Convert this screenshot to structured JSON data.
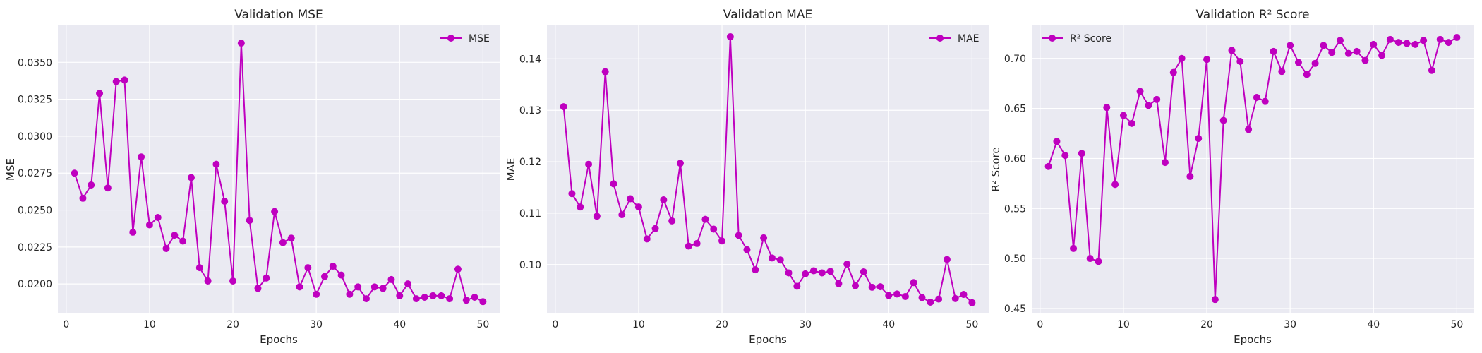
{
  "colors": {
    "line": "#bf00bf",
    "plot_background": "#eaeaf2",
    "grid": "#ffffff"
  },
  "chart_data": [
    {
      "type": "line",
      "title": "Validation MSE",
      "xlabel": "Epochs",
      "ylabel": "MSE",
      "legend": "top-right",
      "grid": true,
      "xlim": [
        -1,
        52
      ],
      "ylim": [
        0.018,
        0.0375
      ],
      "xticks": [
        0,
        10,
        20,
        30,
        40,
        50
      ],
      "yticks": [
        0.02,
        0.0225,
        0.025,
        0.0275,
        0.03,
        0.0325,
        0.035
      ],
      "ytick_labels": [
        "0.0200",
        "0.0225",
        "0.0250",
        "0.0275",
        "0.0300",
        "0.0325",
        "0.0350"
      ],
      "series": [
        {
          "name": "MSE",
          "x": [
            1,
            2,
            3,
            4,
            5,
            6,
            7,
            8,
            9,
            10,
            11,
            12,
            13,
            14,
            15,
            16,
            17,
            18,
            19,
            20,
            21,
            22,
            23,
            24,
            25,
            26,
            27,
            28,
            29,
            30,
            31,
            32,
            33,
            34,
            35,
            36,
            37,
            38,
            39,
            40,
            41,
            42,
            43,
            44,
            45,
            46,
            47,
            48,
            49,
            50
          ],
          "values": [
            0.0275,
            0.0258,
            0.0267,
            0.0329,
            0.0265,
            0.0337,
            0.0338,
            0.0235,
            0.0286,
            0.024,
            0.0245,
            0.0224,
            0.0233,
            0.0229,
            0.0272,
            0.0211,
            0.0202,
            0.0281,
            0.0256,
            0.0202,
            0.0363,
            0.0243,
            0.0197,
            0.0204,
            0.0249,
            0.0228,
            0.0231,
            0.0198,
            0.0211,
            0.0193,
            0.0205,
            0.0212,
            0.0206,
            0.0193,
            0.0198,
            0.019,
            0.0198,
            0.0197,
            0.0203,
            0.0192,
            0.02,
            0.019,
            0.0191,
            0.0192,
            0.0192,
            0.019,
            0.021,
            0.0189,
            0.0191,
            0.0188
          ]
        }
      ]
    },
    {
      "type": "line",
      "title": "Validation MAE",
      "xlabel": "Epochs",
      "ylabel": "MAE",
      "legend": "top-right",
      "grid": true,
      "xlim": [
        -1,
        52
      ],
      "ylim": [
        0.0905,
        0.1465
      ],
      "xticks": [
        0,
        10,
        20,
        30,
        40,
        50
      ],
      "yticks": [
        0.1,
        0.11,
        0.12,
        0.13,
        0.14
      ],
      "ytick_labels": [
        "0.10",
        "0.11",
        "0.12",
        "0.13",
        "0.14"
      ],
      "series": [
        {
          "name": "MAE",
          "x": [
            1,
            2,
            3,
            4,
            5,
            6,
            7,
            8,
            9,
            10,
            11,
            12,
            13,
            14,
            15,
            16,
            17,
            18,
            19,
            20,
            21,
            22,
            23,
            24,
            25,
            26,
            27,
            28,
            29,
            30,
            31,
            32,
            33,
            34,
            35,
            36,
            37,
            38,
            39,
            40,
            41,
            42,
            43,
            44,
            45,
            46,
            47,
            48,
            49,
            50
          ],
          "values": [
            0.1307,
            0.1138,
            0.1112,
            0.1195,
            0.1094,
            0.1375,
            0.1157,
            0.1097,
            0.1128,
            0.1112,
            0.105,
            0.107,
            0.1126,
            0.1085,
            0.1197,
            0.1036,
            0.1041,
            0.1088,
            0.1069,
            0.1046,
            0.1443,
            0.1057,
            0.1029,
            0.099,
            0.1052,
            0.1013,
            0.1009,
            0.0984,
            0.0958,
            0.0982,
            0.0988,
            0.0984,
            0.0987,
            0.0963,
            0.1001,
            0.0959,
            0.0986,
            0.0956,
            0.0957,
            0.094,
            0.0943,
            0.0938,
            0.0965,
            0.0936,
            0.0927,
            0.0933,
            0.101,
            0.0934,
            0.0942,
            0.0926
          ]
        }
      ]
    },
    {
      "type": "line",
      "title": "Validation R² Score",
      "xlabel": "Epochs",
      "ylabel": "R² Score",
      "legend": "top-left",
      "grid": true,
      "xlim": [
        -1,
        52
      ],
      "ylim": [
        0.445,
        0.733
      ],
      "xticks": [
        0,
        10,
        20,
        30,
        40,
        50
      ],
      "yticks": [
        0.45,
        0.5,
        0.55,
        0.6,
        0.65,
        0.7
      ],
      "ytick_labels": [
        "0.45",
        "0.50",
        "0.55",
        "0.60",
        "0.65",
        "0.70"
      ],
      "series": [
        {
          "name": "R² Score",
          "x": [
            1,
            2,
            3,
            4,
            5,
            6,
            7,
            8,
            9,
            10,
            11,
            12,
            13,
            14,
            15,
            16,
            17,
            18,
            19,
            20,
            21,
            22,
            23,
            24,
            25,
            26,
            27,
            28,
            29,
            30,
            31,
            32,
            33,
            34,
            35,
            36,
            37,
            38,
            39,
            40,
            41,
            42,
            43,
            44,
            45,
            46,
            47,
            48,
            49,
            50
          ],
          "values": [
            0.592,
            0.617,
            0.603,
            0.51,
            0.605,
            0.5,
            0.497,
            0.651,
            0.574,
            0.643,
            0.635,
            0.667,
            0.653,
            0.659,
            0.596,
            0.686,
            0.7,
            0.582,
            0.62,
            0.699,
            0.459,
            0.638,
            0.708,
            0.697,
            0.629,
            0.661,
            0.657,
            0.707,
            0.687,
            0.713,
            0.696,
            0.684,
            0.695,
            0.713,
            0.706,
            0.718,
            0.705,
            0.707,
            0.698,
            0.714,
            0.703,
            0.719,
            0.716,
            0.715,
            0.714,
            0.718,
            0.688,
            0.719,
            0.716,
            0.721
          ]
        }
      ]
    }
  ]
}
